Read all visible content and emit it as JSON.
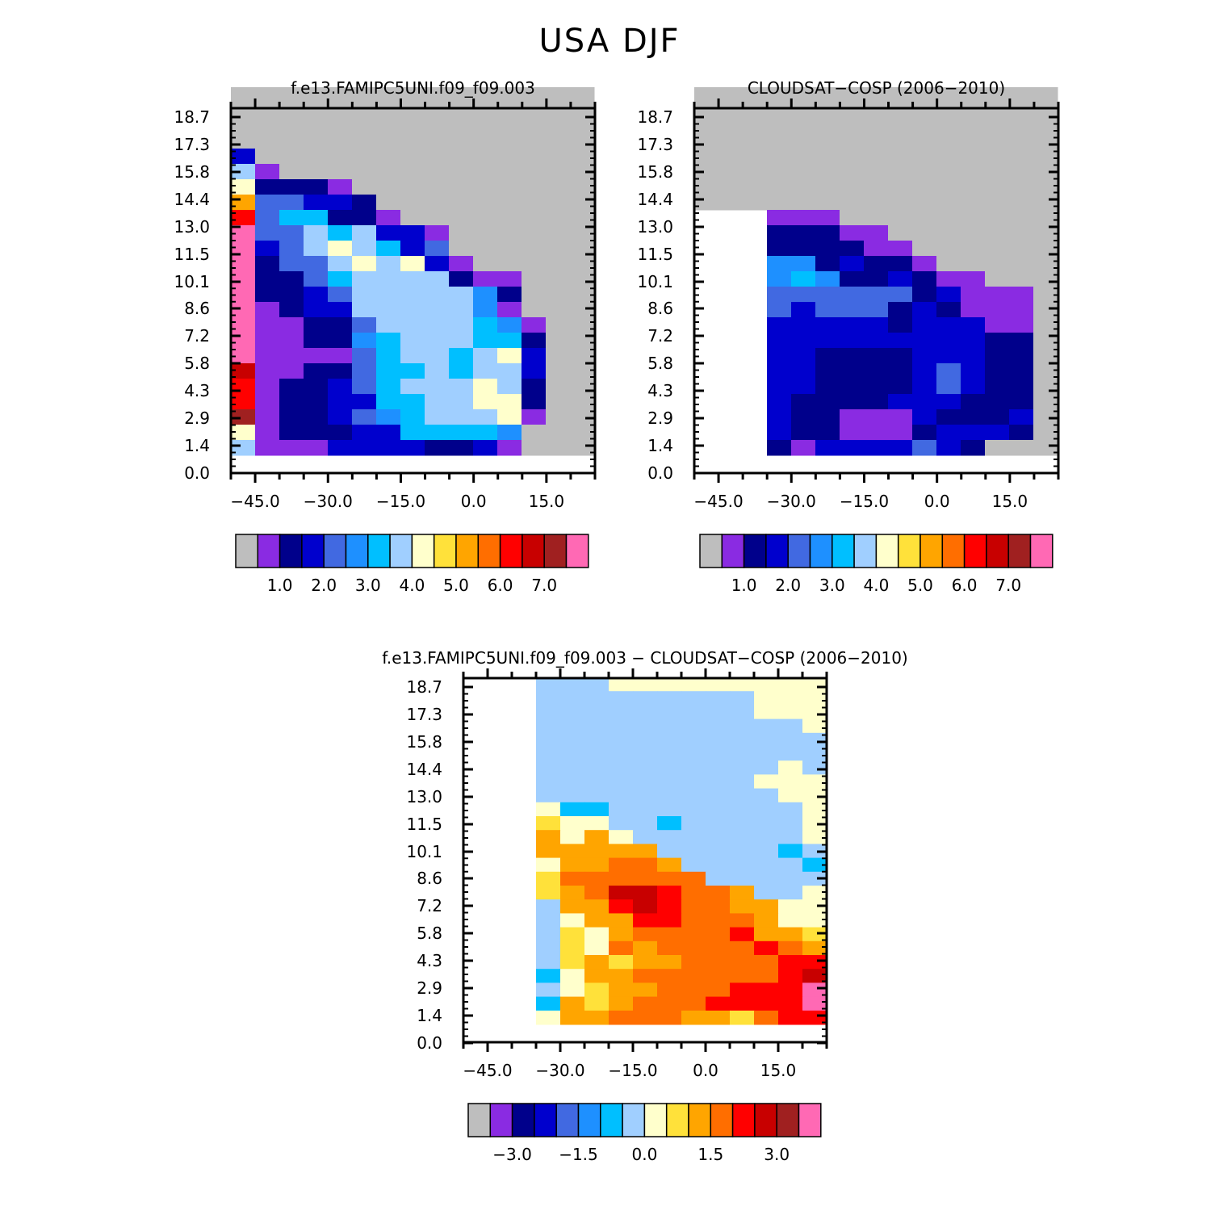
{
  "title": "USA DJF",
  "chart_data": [
    {
      "type": "heatmap",
      "title": "f.e13.FAMIPC5UNI.f09_f09.003",
      "x_ticks": [
        "−45.0",
        "−30.0",
        "−15.0",
        "0.0",
        "15.0"
      ],
      "x_tick_values": [
        -45,
        -30,
        -15,
        0,
        15
      ],
      "xlim": [
        -50,
        25
      ],
      "y_ticks": [
        "0.0",
        "1.4",
        "2.9",
        "4.3",
        "5.8",
        "7.2",
        "8.6",
        "10.1",
        "11.5",
        "13.0",
        "14.4",
        "15.8",
        "17.3",
        "18.7"
      ],
      "grid": false,
      "colorbar": {
        "colors": [
          "#bebebe",
          "#8a2be2",
          "#00008b",
          "#0000cd",
          "#4169e1",
          "#1e90ff",
          "#00bfff",
          "#a0cfff",
          "#ffffcc",
          "#ffe13a",
          "#ffa500",
          "#ff6e00",
          "#ff0000",
          "#c80000",
          "#a02020",
          "#ff69b4"
        ],
        "tick_labels": [
          "1.0",
          "2.0",
          "3.0",
          "4.0",
          "5.0",
          "6.0",
          "7.0"
        ],
        "tick_boundaries": [
          2,
          4,
          6,
          8,
          10,
          12,
          14
        ]
      }
    },
    {
      "type": "heatmap",
      "title": "CLOUDSAT−COSP (2006−2010)",
      "x_ticks": [
        "−45.0",
        "−30.0",
        "−15.0",
        "0.0",
        "15.0"
      ],
      "x_tick_values": [
        -45,
        -30,
        -15,
        0,
        15
      ],
      "xlim": [
        -50,
        25
      ],
      "y_ticks": [
        "0.0",
        "1.4",
        "2.9",
        "4.3",
        "5.8",
        "7.2",
        "8.6",
        "10.1",
        "11.5",
        "13.0",
        "14.4",
        "15.8",
        "17.3",
        "18.7"
      ],
      "grid": false,
      "colorbar": {
        "colors": [
          "#bebebe",
          "#8a2be2",
          "#00008b",
          "#0000cd",
          "#4169e1",
          "#1e90ff",
          "#00bfff",
          "#a0cfff",
          "#ffffcc",
          "#ffe13a",
          "#ffa500",
          "#ff6e00",
          "#ff0000",
          "#c80000",
          "#a02020",
          "#ff69b4"
        ],
        "tick_labels": [
          "1.0",
          "2.0",
          "3.0",
          "4.0",
          "5.0",
          "6.0",
          "7.0"
        ],
        "tick_boundaries": [
          2,
          4,
          6,
          8,
          10,
          12,
          14
        ]
      }
    },
    {
      "type": "heatmap",
      "title": "f.e13.FAMIPC5UNI.f09_f09.003 − CLOUDSAT−COSP (2006−2010)",
      "x_ticks": [
        "−45.0",
        "−30.0",
        "−15.0",
        "0.0",
        "15.0"
      ],
      "x_tick_values": [
        -45,
        -30,
        -15,
        0,
        15
      ],
      "xlim": [
        -50,
        25
      ],
      "y_ticks": [
        "0.0",
        "1.4",
        "2.9",
        "4.3",
        "5.8",
        "7.2",
        "8.6",
        "10.1",
        "11.5",
        "13.0",
        "14.4",
        "15.8",
        "17.3",
        "18.7"
      ],
      "grid": false,
      "colorbar": {
        "colors": [
          "#bebebe",
          "#8a2be2",
          "#00008b",
          "#0000cd",
          "#4169e1",
          "#1e90ff",
          "#00bfff",
          "#a0cfff",
          "#ffffcc",
          "#ffe13a",
          "#ffa500",
          "#ff6e00",
          "#ff0000",
          "#c80000",
          "#a02020",
          "#ff69b4"
        ],
        "tick_labels": [
          "−3.0",
          "−1.5",
          "0.0",
          "1.5",
          "3.0"
        ],
        "tick_boundaries": [
          2,
          5,
          8,
          11,
          14
        ]
      }
    }
  ]
}
